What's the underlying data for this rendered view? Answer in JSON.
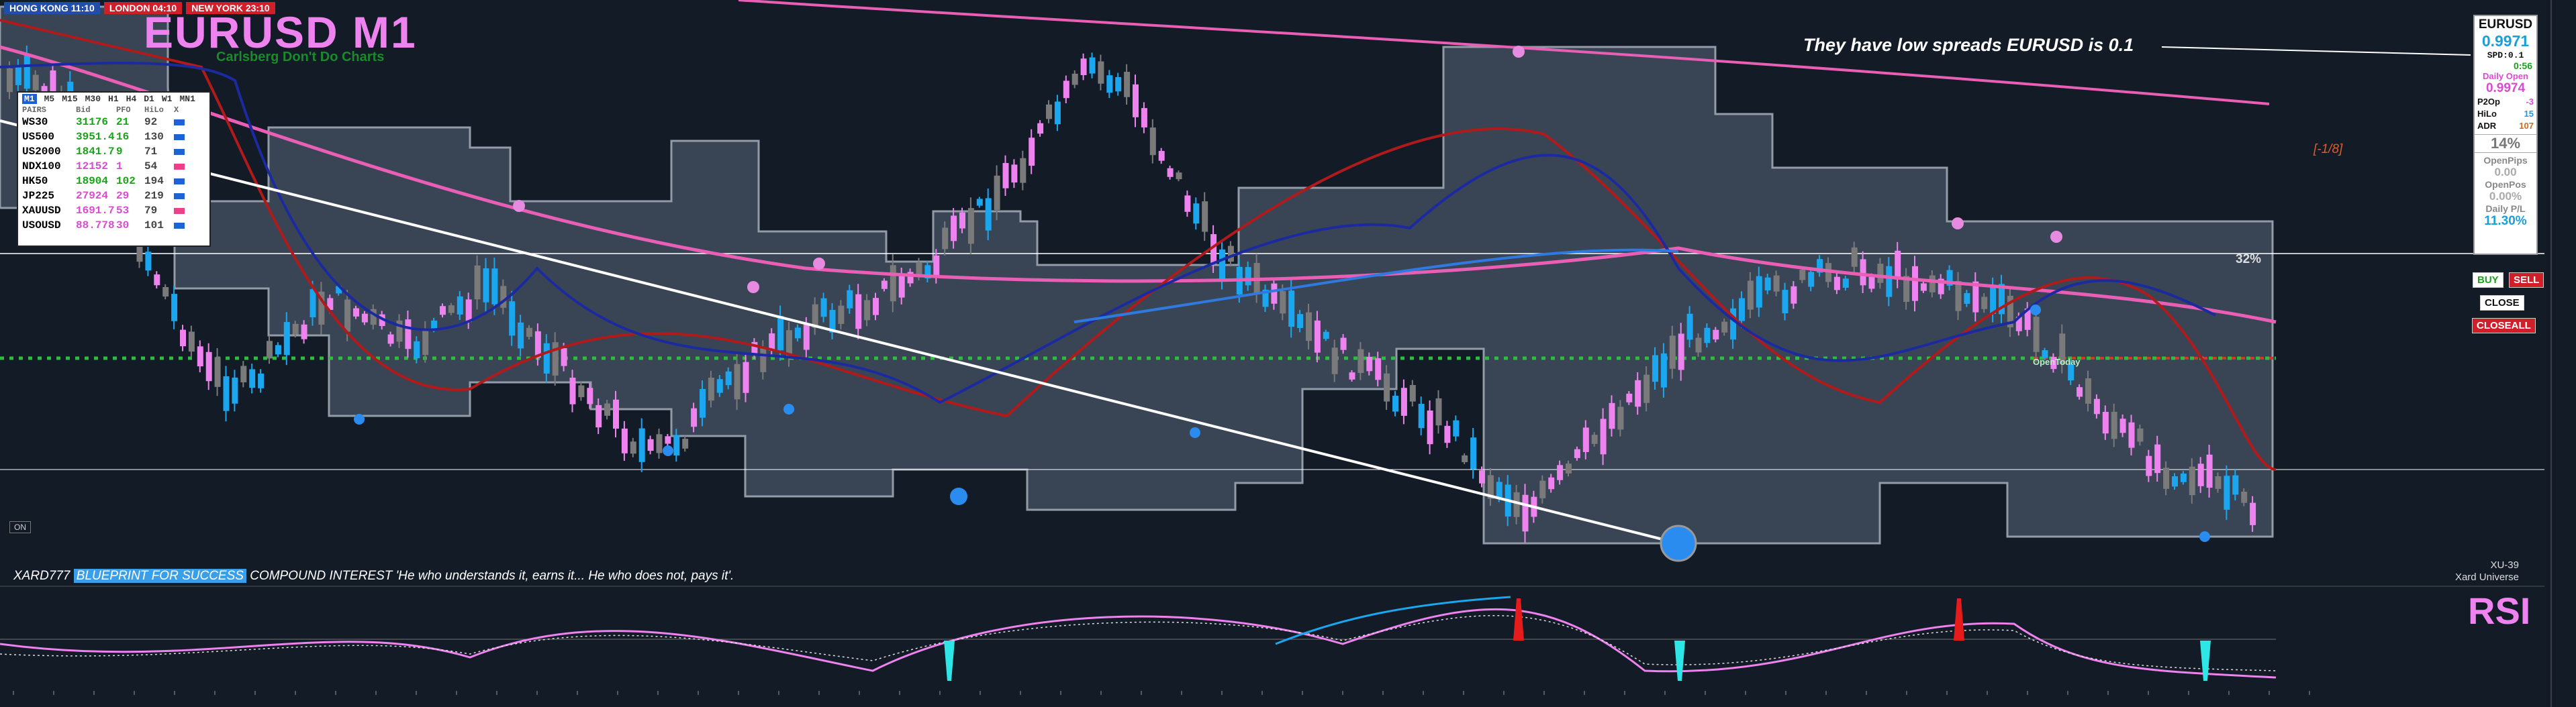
{
  "symbol_title": "EURUSD M1",
  "subtitle": "Carlsberg Don't Do Charts",
  "sessions": [
    {
      "label": "HONG KONG 11:10",
      "color": "#1f4fa8"
    },
    {
      "label": "LONDON 04:10",
      "color": "#d11f2a"
    },
    {
      "label": "NEW YORK 23:10",
      "color": "#d11f2a"
    }
  ],
  "timeframes": [
    "M1",
    "M5",
    "M15",
    "M30",
    "H1",
    "H4",
    "D1",
    "W1",
    "MN1"
  ],
  "active_timeframe": "M1",
  "pairs_header": [
    "PAIRS",
    "Bid",
    "PFO",
    "HiLo",
    "X"
  ],
  "pairs": [
    {
      "sym": "WS30",
      "bid": "31176",
      "pfo": "21",
      "hilo": "92",
      "bid_color": "#1aa31a",
      "sw": "#1e63d6"
    },
    {
      "sym": "US500",
      "bid": "3951.4",
      "pfo": "16",
      "hilo": "130",
      "bid_color": "#1aa31a",
      "sw": "#1e63d6"
    },
    {
      "sym": "US2000",
      "bid": "1841.7",
      "pfo": "9",
      "hilo": "71",
      "bid_color": "#1aa31a",
      "sw": "#1e63d6"
    },
    {
      "sym": "NDX100",
      "bid": "12152",
      "pfo": "1",
      "hilo": "54",
      "bid_color": "#d94bd1",
      "sw": "#ee3f8b"
    },
    {
      "sym": "HK50",
      "bid": "18904",
      "pfo": "102",
      "hilo": "194",
      "bid_color": "#1aa31a",
      "sw": "#1e63d6"
    },
    {
      "sym": "JP225",
      "bid": "27924",
      "pfo": "29",
      "hilo": "219",
      "bid_color": "#d94bd1",
      "sw": "#1e63d6"
    },
    {
      "sym": "XAUUSD",
      "bid": "1691.7",
      "pfo": "53",
      "hilo": "79",
      "bid_color": "#d94bd1",
      "sw": "#ee3f8b"
    },
    {
      "sym": "USOUSD",
      "bid": "88.778",
      "pfo": "30",
      "hilo": "101",
      "bid_color": "#d94bd1",
      "sw": "#1e63d6"
    }
  ],
  "annotation": "They have low spreads EURUSD is 0.1",
  "fib_label": "[-1/8]",
  "pct_label": "32%",
  "open_today_label": "OpenToday",
  "side_panel": {
    "symbol": "EURUSD",
    "price": "0.9971",
    "spread": "SPD:0.1",
    "timer": "0:56",
    "daily_open_label": "Daily Open",
    "daily_open": "0.9974",
    "p2op_label": "P2Op",
    "p2op": "-3",
    "hilo_label": "HiLo",
    "hilo": "15",
    "adr_label": "ADR",
    "adr": "107",
    "pct": "14%",
    "openpips_label": "OpenPips",
    "openpips": "0.00",
    "openpos_label": "OpenPos",
    "openpos": "0.00%",
    "dailypl_label": "Daily P/L",
    "dailypl": "11.30%"
  },
  "buttons": {
    "buy": "BUY",
    "sell": "SELL",
    "close": "CLOSE",
    "closeall": "CLOSEALL"
  },
  "on_label": "ON",
  "footer": {
    "prefix": "XARD777",
    "highlight": "BLUEPRINT FOR SUCCESS",
    "text": "COMPOUND INTEREST 'He who understands it, earns it... He who does not, pays it'."
  },
  "xu_label": "XU-39",
  "xard_universe": "Xard Universe",
  "rsi_label": "RSI",
  "colors": {
    "bg": "#131b27",
    "band": "#3c4858",
    "bull_candle": "#1aa7f0",
    "bear_candle": "#ee82ee",
    "neutral_candle": "#7a7a7a",
    "slow_ma": "#e95fb6",
    "fast_ma": "#b01a1a",
    "signal_ma": "#1c2aa0",
    "mid_ma": "#2f7ae0",
    "dotted_level": "#29c03a",
    "red_level": "#d03a1f"
  }
}
